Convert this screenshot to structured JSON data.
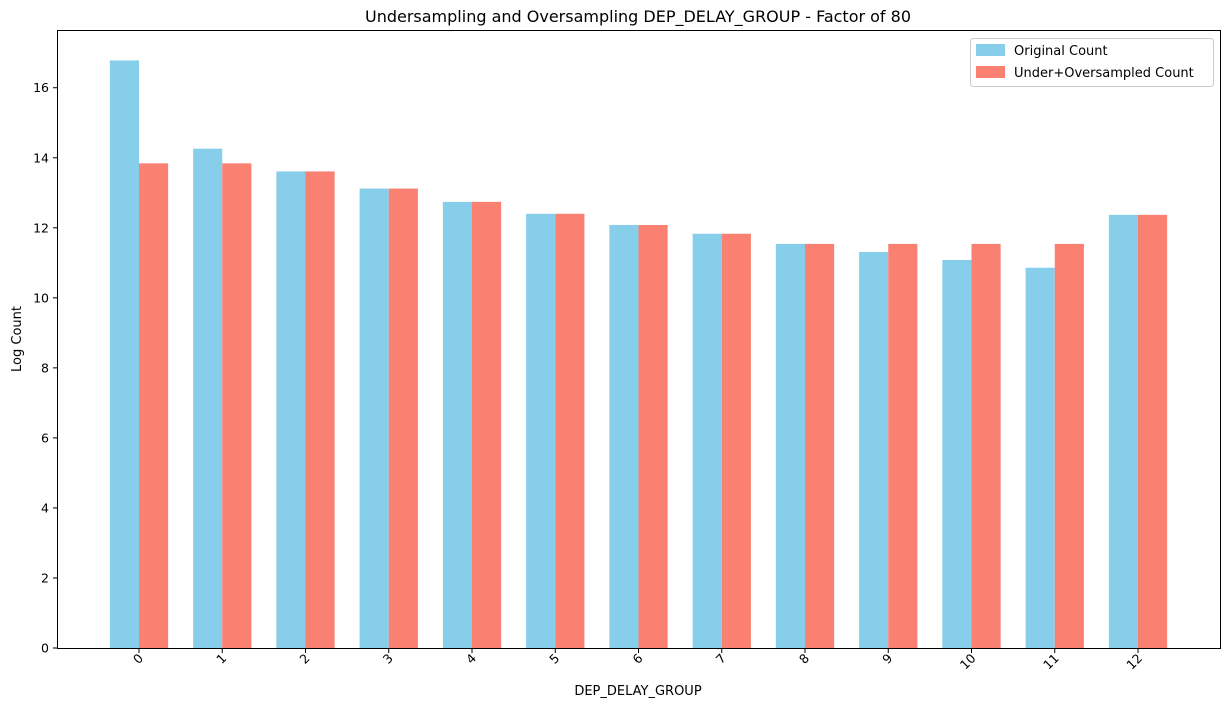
{
  "chart_data": {
    "type": "bar",
    "title": "Undersampling and Oversampling DEP_DELAY_GROUP - Factor of 80",
    "xlabel": "DEP_DELAY_GROUP",
    "ylabel": "Log Count",
    "categories": [
      "0",
      "1",
      "2",
      "3",
      "4",
      "5",
      "6",
      "7",
      "8",
      "9",
      "10",
      "11",
      "12"
    ],
    "series": [
      {
        "name": "Original Count",
        "color": "#87CEEB",
        "values": [
          16.78,
          14.26,
          13.61,
          13.12,
          12.74,
          12.4,
          12.08,
          11.83,
          11.54,
          11.31,
          11.08,
          10.86,
          12.37
        ]
      },
      {
        "name": "Under+Oversampled Count",
        "color": "#FA8072",
        "values": [
          13.84,
          13.84,
          13.61,
          13.12,
          12.74,
          12.4,
          12.08,
          11.83,
          11.54,
          11.54,
          11.54,
          11.54,
          12.37
        ]
      }
    ],
    "yticks": [
      0,
      2,
      4,
      6,
      8,
      10,
      12,
      14,
      16
    ],
    "ylim": [
      0,
      17.62
    ],
    "legend": "top-right",
    "grid": false,
    "xtick_rotation": 45
  }
}
